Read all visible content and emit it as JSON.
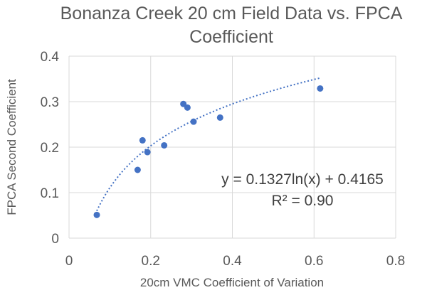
{
  "chart_data": {
    "type": "scatter",
    "title_lines": [
      "Bonanza Creek 20 cm Field Data vs. FPCA",
      "Coefficient"
    ],
    "xlabel": "20cm VMC Coefficient of Variation",
    "ylabel": "FPCA Second Coefficient",
    "xlim": [
      0,
      0.8
    ],
    "ylim": [
      0,
      0.4
    ],
    "x_ticks": [
      0,
      0.2,
      0.4,
      0.6,
      0.8
    ],
    "x_tick_labels": [
      "0",
      "0.2",
      "0.4",
      "0.6",
      "0.8"
    ],
    "y_ticks": [
      0,
      0.1,
      0.2,
      0.3,
      0.4
    ],
    "y_tick_labels": [
      "0",
      "0.1",
      "0.2",
      "0.3",
      "0.4"
    ],
    "grid": {
      "horizontal": true,
      "vertical": true
    },
    "legend": "none",
    "point_color": "#4472c4",
    "points": [
      {
        "x": 0.068,
        "y": 0.051
      },
      {
        "x": 0.168,
        "y": 0.15
      },
      {
        "x": 0.18,
        "y": 0.215
      },
      {
        "x": 0.192,
        "y": 0.189
      },
      {
        "x": 0.233,
        "y": 0.204
      },
      {
        "x": 0.28,
        "y": 0.295
      },
      {
        "x": 0.29,
        "y": 0.287
      },
      {
        "x": 0.305,
        "y": 0.256
      },
      {
        "x": 0.37,
        "y": 0.265
      },
      {
        "x": 0.615,
        "y": 0.329
      }
    ],
    "trendline": {
      "type": "log",
      "a": 0.1327,
      "b": 0.4165,
      "x_start": 0.068,
      "x_end": 0.615,
      "style": "dotted",
      "equation_label": "y = 0.1327ln(x) + 0.4165",
      "r2_label": "R² = 0.90"
    }
  }
}
